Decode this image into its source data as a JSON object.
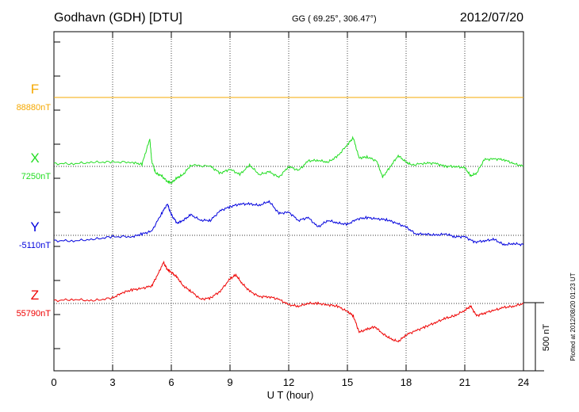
{
  "header": {
    "station": "Godhavn (GDH)  [DTU]",
    "coords": "GG ( 69.25°, 306.47°)",
    "date": "2012/07/20"
  },
  "plotted_note": "Plotted at 2012/08/20 01:23 UT",
  "scale_label": "500 nT",
  "chart_data": {
    "type": "line",
    "xlabel": "U T (hour)",
    "ylabel": "",
    "xlim": [
      0,
      24
    ],
    "x_ticks": [
      "0",
      "3",
      "6",
      "9",
      "12",
      "15",
      "18",
      "21",
      "24"
    ],
    "scale_bar_nT": 500,
    "series": [
      {
        "name": "F",
        "baseline_label": "88880nT",
        "color": "#f5a800",
        "baseline_nT": 88880,
        "x": [
          0,
          24
        ],
        "y": [
          88880,
          88880
        ]
      },
      {
        "name": "X",
        "baseline_label": "7250nT",
        "color": "#22dd22",
        "baseline_nT": 7250,
        "x": [
          0,
          1,
          2,
          3,
          4,
          4.5,
          4.9,
          5.0,
          5.2,
          5.5,
          5.8,
          6.0,
          6.3,
          6.6,
          7,
          8,
          8.5,
          9,
          9.5,
          10,
          10.5,
          11,
          11.5,
          12,
          12.5,
          13,
          13.5,
          14,
          14.5,
          15,
          15.3,
          15.6,
          16,
          16.5,
          16.8,
          17.2,
          17.6,
          18,
          18.3,
          19,
          19.5,
          20,
          20.5,
          21,
          21.3,
          21.6,
          22,
          22.5,
          23,
          23.5,
          24
        ],
        "y": [
          7270,
          7270,
          7280,
          7282,
          7280,
          7265,
          7450,
          7290,
          7200,
          7180,
          7140,
          7130,
          7165,
          7190,
          7260,
          7250,
          7200,
          7230,
          7190,
          7260,
          7190,
          7210,
          7170,
          7250,
          7220,
          7290,
          7295,
          7280,
          7325,
          7410,
          7460,
          7310,
          7320,
          7290,
          7170,
          7250,
          7330,
          7280,
          7260,
          7275,
          7272,
          7250,
          7250,
          7240,
          7180,
          7200,
          7300,
          7305,
          7300,
          7270,
          7250
        ]
      },
      {
        "name": "Y",
        "baseline_label": "-5110nT",
        "color": "#0000dd",
        "baseline_nT": -5110,
        "x": [
          0,
          1,
          2,
          3,
          4,
          4.5,
          5,
          5.5,
          5.8,
          6,
          6.3,
          6.6,
          7,
          7.5,
          8,
          8.5,
          9,
          9.5,
          10,
          10.5,
          11,
          11.5,
          12,
          12.5,
          13,
          13.5,
          14,
          14.5,
          15,
          15.5,
          16,
          16.5,
          17,
          17.5,
          18,
          18.5,
          19,
          19.5,
          20,
          20.5,
          21,
          21.5,
          22,
          22.5,
          23,
          23.5,
          24
        ],
        "y": [
          -5150,
          -5150,
          -5140,
          -5120,
          -5120,
          -5100,
          -5080,
          -4950,
          -4880,
          -4960,
          -5020,
          -5000,
          -4960,
          -5000,
          -5000,
          -4930,
          -4900,
          -4880,
          -4880,
          -4890,
          -4860,
          -4950,
          -4940,
          -5000,
          -4980,
          -5050,
          -5000,
          -5020,
          -5030,
          -4990,
          -4980,
          -4990,
          -4995,
          -5020,
          -5050,
          -5100,
          -5100,
          -5110,
          -5100,
          -5120,
          -5120,
          -5160,
          -5150,
          -5140,
          -5180,
          -5170,
          -5180
        ]
      },
      {
        "name": "Z",
        "baseline_label": "55790nT",
        "color": "#ee0000",
        "baseline_nT": 55790,
        "x": [
          0,
          1,
          2,
          3,
          3.5,
          4,
          4.5,
          5,
          5.3,
          5.6,
          5.8,
          6,
          6.3,
          6.6,
          7,
          7.5,
          8,
          8.5,
          9,
          9.3,
          9.6,
          10,
          10.5,
          11,
          11.5,
          12,
          12.5,
          13,
          13.5,
          14,
          14.5,
          15,
          15.3,
          15.6,
          16,
          16.4,
          16.8,
          17.2,
          17.6,
          18,
          18.5,
          19,
          19.5,
          20,
          20.5,
          21,
          21.3,
          21.6,
          22,
          22.5,
          23,
          23.5,
          24
        ],
        "y": [
          55810,
          55820,
          55810,
          55830,
          55870,
          55890,
          55900,
          55920,
          56000,
          56090,
          56040,
          56020,
          55980,
          55920,
          55880,
          55820,
          55830,
          55880,
          55970,
          56000,
          55940,
          55880,
          55840,
          55840,
          55820,
          55780,
          55770,
          55790,
          55790,
          55780,
          55770,
          55730,
          55700,
          55580,
          55600,
          55620,
          55570,
          55530,
          55510,
          55560,
          55590,
          55620,
          55650,
          55680,
          55700,
          55740,
          55770,
          55700,
          55720,
          55740,
          55760,
          55770,
          55790
        ]
      }
    ]
  }
}
